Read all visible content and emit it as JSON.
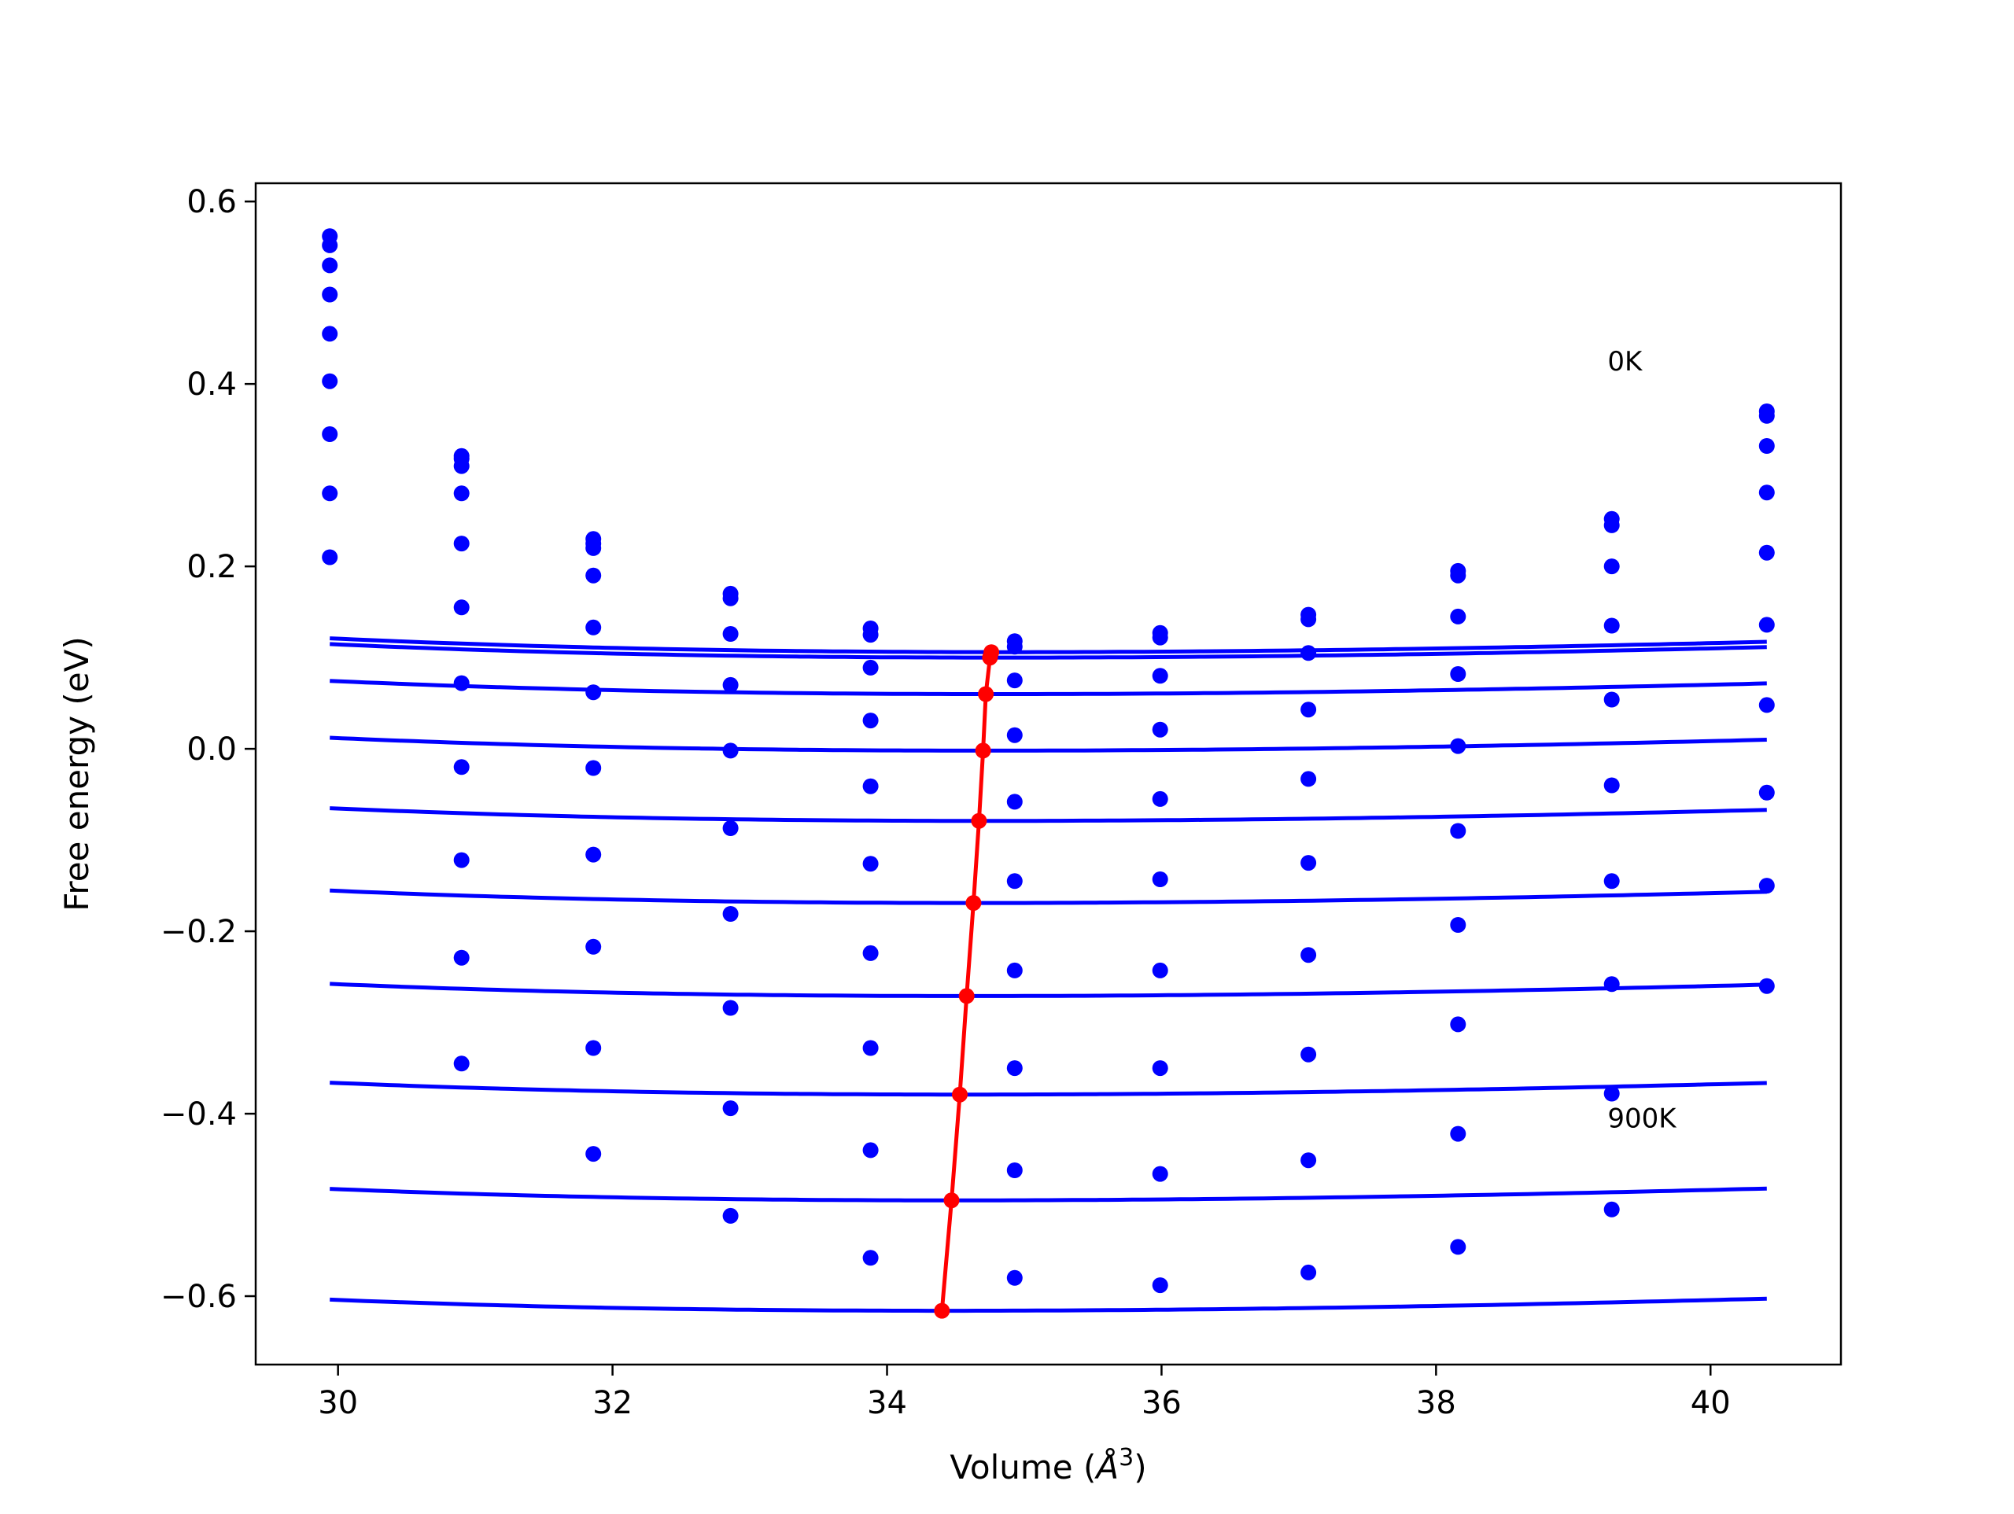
{
  "chart_data": {
    "type": "line",
    "xlabel": "Volume (",
    "xlabel_symbol": "Å",
    "xlabel_exponent": "3",
    "xlabel_close": ")",
    "ylabel": "Free energy (eV)",
    "xlim": [
      29.4,
      40.95
    ],
    "ylim": [
      -0.675,
      0.62
    ],
    "x_ticks": [
      30,
      32,
      34,
      36,
      38,
      40
    ],
    "x_tick_labels": [
      "30",
      "32",
      "34",
      "36",
      "38",
      "40"
    ],
    "y_ticks": [
      -0.6,
      -0.4,
      -0.2,
      0.0,
      0.2,
      0.4,
      0.6
    ],
    "y_tick_labels": [
      "−0.6",
      "−0.4",
      "−0.2",
      "0.0",
      "0.2",
      "0.4",
      "0.6"
    ],
    "annotations": [
      {
        "text": "0K",
        "x": 39.25,
        "y": 0.415
      },
      {
        "text": "900K",
        "x": 39.25,
        "y": -0.415
      }
    ],
    "colors": {
      "data": "#0000ff",
      "fit": "#0000ff",
      "minima": "#ff0000",
      "axes": "#000000"
    },
    "x": [
      29.94,
      30.9,
      31.86,
      32.86,
      33.88,
      34.93,
      35.99,
      37.07,
      38.16,
      39.28,
      40.41
    ],
    "series": [
      {
        "points": [
          0.562,
          0.321,
          0.23,
          0.17,
          0.132,
          0.118,
          0.127,
          0.147,
          0.195,
          0.252,
          0.37
        ]
      },
      {
        "points": [
          0.552,
          0.318,
          0.225,
          0.165,
          0.125,
          0.112,
          0.122,
          0.142,
          0.19,
          0.245,
          0.365
        ]
      },
      {
        "points": [
          0.53,
          0.31,
          0.22,
          0.126,
          0.089,
          0.075,
          0.08,
          0.105,
          0.145,
          0.2,
          0.332
        ]
      },
      {
        "points": [
          0.498,
          0.28,
          0.19,
          0.07,
          0.031,
          0.015,
          0.021,
          0.043,
          0.082,
          0.135,
          0.281
        ]
      },
      {
        "points": [
          0.455,
          0.225,
          0.133,
          -0.002,
          -0.041,
          -0.058,
          -0.055,
          -0.033,
          0.003,
          0.054,
          0.215
        ]
      },
      {
        "points": [
          0.403,
          0.155,
          0.062,
          -0.087,
          -0.126,
          -0.145,
          -0.143,
          -0.125,
          -0.09,
          -0.04,
          0.136
        ]
      },
      {
        "points": [
          0.345,
          0.072,
          -0.021,
          -0.181,
          -0.224,
          -0.243,
          -0.243,
          -0.226,
          -0.193,
          -0.145,
          0.048
        ]
      },
      {
        "points": [
          0.28,
          -0.02,
          -0.116,
          -0.284,
          -0.328,
          -0.35,
          -0.35,
          -0.335,
          -0.302,
          -0.258,
          -0.048
        ]
      },
      {
        "points": [
          0.21,
          -0.122,
          -0.217,
          -0.394,
          -0.44,
          -0.462,
          -0.466,
          -0.451,
          -0.422,
          -0.378,
          -0.15
        ]
      },
      {
        "points": [
          null,
          -0.229,
          -0.328,
          -0.512,
          -0.558,
          -0.58,
          -0.588,
          -0.574,
          -0.546,
          -0.505,
          -0.26
        ]
      },
      {
        "points": [
          null,
          -0.345,
          -0.444,
          null,
          null,
          null,
          null,
          null,
          null,
          null,
          null
        ]
      }
    ],
    "fit_curves": [
      {
        "v0": 34.9,
        "e0": 0.106,
        "k": 0.0333,
        "kp": 4,
        "x_range": [
          29.94,
          40.41
        ]
      },
      {
        "v0": 34.85,
        "e0": 0.1,
        "k": 0.0333,
        "kp": 4,
        "x_range": [
          29.94,
          40.41
        ]
      },
      {
        "v0": 34.8,
        "e0": 0.06,
        "k": 0.0333,
        "kp": 4,
        "x_range": [
          29.94,
          40.41
        ]
      },
      {
        "v0": 34.74,
        "e0": -0.002,
        "k": 0.0333,
        "kp": 4,
        "x_range": [
          29.94,
          40.41
        ]
      },
      {
        "v0": 34.71,
        "e0": -0.079,
        "k": 0.0333,
        "kp": 4,
        "x_range": [
          29.94,
          40.41
        ]
      },
      {
        "v0": 34.66,
        "e0": -0.169,
        "k": 0.0333,
        "kp": 4,
        "x_range": [
          29.94,
          40.41
        ]
      },
      {
        "v0": 34.61,
        "e0": -0.271,
        "k": 0.0333,
        "kp": 4,
        "x_range": [
          29.94,
          40.41
        ]
      },
      {
        "v0": 34.56,
        "e0": -0.379,
        "k": 0.0333,
        "kp": 4,
        "x_range": [
          29.94,
          40.41
        ]
      },
      {
        "v0": 34.49,
        "e0": -0.495,
        "k": 0.0333,
        "kp": 4,
        "x_range": [
          29.94,
          40.41
        ]
      },
      {
        "v0": 34.42,
        "e0": -0.616,
        "k": 0.0333,
        "kp": 4,
        "x_range": [
          29.94,
          40.41
        ]
      }
    ],
    "minima": {
      "x": [
        34.76,
        34.75,
        34.72,
        34.7,
        34.67,
        34.63,
        34.58,
        34.53,
        34.47,
        34.4
      ],
      "y": [
        0.106,
        0.1,
        0.06,
        -0.002,
        -0.079,
        -0.169,
        -0.271,
        -0.379,
        -0.495,
        -0.616
      ]
    }
  }
}
